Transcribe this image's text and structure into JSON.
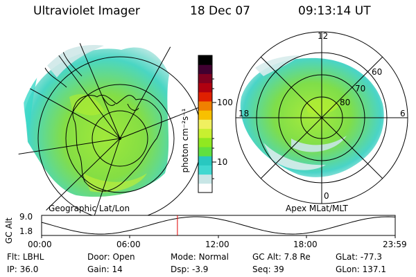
{
  "header": {
    "instrument": "Ultraviolet Imager",
    "date": "18 Dec 07",
    "time": "09:13:14 UT"
  },
  "left_panel": {
    "caption": "Geographic Lat/Lon"
  },
  "right_panel": {
    "caption": "Apex MLat/MLT",
    "mlt_labels": {
      "top": "12",
      "left": "18",
      "right": "6",
      "bottom": "0"
    },
    "mlat_labels": [
      "60",
      "70",
      "80"
    ]
  },
  "colorbar": {
    "unit_label": "photon cm⁻²s⁻¹",
    "ticks": [
      "100",
      "10"
    ],
    "stops": [
      "#ffffff",
      "#c8e6e6",
      "#40d8d0",
      "#28c8c0",
      "#60e040",
      "#90e820",
      "#c8f030",
      "#f0f060",
      "#f8c000",
      "#f08000",
      "#e02000",
      "#b00010",
      "#800020",
      "#400030",
      "#000000"
    ]
  },
  "timeline": {
    "ylabel": "GC Alt",
    "yticks": [
      "9.0",
      "1.8"
    ],
    "xticks": [
      "00:00",
      "06:00",
      "12:00",
      "18:00",
      "23:59"
    ],
    "current_time": "09:13"
  },
  "footer": {
    "row1": [
      {
        "label": "Flt:",
        "value": "LBHL"
      },
      {
        "label": "Door:",
        "value": "Open"
      },
      {
        "label": "Mode:",
        "value": "Normal"
      },
      {
        "label": "GC Alt:",
        "value": "7.8 Re"
      },
      {
        "label": "GLat:",
        "value": "-77.3"
      }
    ],
    "row2": [
      {
        "label": "IP:",
        "value": "36.0"
      },
      {
        "label": "Gain:",
        "value": "14"
      },
      {
        "label": "Dsp:",
        "value": "-3.9"
      },
      {
        "label": "Seq:",
        "value": "39"
      },
      {
        "label": "GLon:",
        "value": "137.1"
      }
    ]
  },
  "colors": {
    "aurora_green": "#7ee038",
    "aurora_cyan": "#38d8c8",
    "aurora_pale": "#cfe8e8",
    "marker": "#e00000"
  }
}
